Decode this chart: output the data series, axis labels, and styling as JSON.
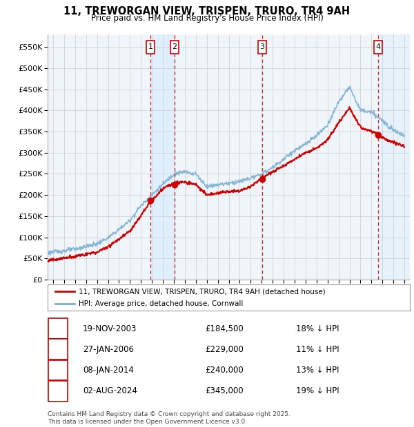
{
  "title_line1": "11, TREWORGAN VIEW, TRISPEN, TRURO, TR4 9AH",
  "title_line2": "Price paid vs. HM Land Registry's House Price Index (HPI)",
  "ytick_values": [
    0,
    50000,
    100000,
    150000,
    200000,
    250000,
    300000,
    350000,
    400000,
    450000,
    500000,
    550000
  ],
  "ylim": [
    0,
    580000
  ],
  "xlim_start": 1994.5,
  "xlim_end": 2027.5,
  "transactions": [
    {
      "num": 1,
      "date": "19-NOV-2003",
      "price": 184500,
      "year": 2003.88,
      "pct": "18%",
      "dir": "↓"
    },
    {
      "num": 2,
      "date": "27-JAN-2006",
      "price": 229000,
      "year": 2006.07,
      "pct": "11%",
      "dir": "↓"
    },
    {
      "num": 3,
      "date": "08-JAN-2014",
      "price": 240000,
      "year": 2014.02,
      "pct": "13%",
      "dir": "↓"
    },
    {
      "num": 4,
      "date": "02-AUG-2024",
      "price": 345000,
      "year": 2024.58,
      "pct": "19%",
      "dir": "↓"
    }
  ],
  "hpi_line_color": "#7bafd4",
  "price_line_color": "#cc0000",
  "vline_color": "#cc0000",
  "shade_color": "#ddeeff",
  "hatch_color": "#bbccdd",
  "background_color": "#ffffff",
  "grid_color": "#cccccc",
  "box_color": "#cc0000",
  "marker_color": "#cc0000",
  "footer_text": "Contains HM Land Registry data © Crown copyright and database right 2025.\nThis data is licensed under the Open Government Licence v3.0.",
  "legend_entries": [
    "11, TREWORGAN VIEW, TRISPEN, TRURO, TR4 9AH (detached house)",
    "HPI: Average price, detached house, Cornwall"
  ],
  "hpi_key_years": [
    1994,
    1995,
    1997,
    1999,
    2000,
    2002,
    2003,
    2004,
    2005,
    2006,
    2007,
    2008,
    2009,
    2010,
    2011,
    2012,
    2013,
    2014,
    2015,
    2016,
    2017,
    2018,
    2019,
    2020,
    2021,
    2022,
    2023,
    2024,
    2025,
    2026,
    2027
  ],
  "hpi_key_vals": [
    62000,
    65000,
    72000,
    85000,
    98000,
    140000,
    175000,
    200000,
    225000,
    250000,
    255000,
    250000,
    220000,
    225000,
    228000,
    232000,
    240000,
    248000,
    265000,
    285000,
    305000,
    320000,
    340000,
    365000,
    420000,
    455000,
    400000,
    395000,
    375000,
    355000,
    340000
  ],
  "price_key_years": [
    1994,
    1995,
    1997,
    1999,
    2000,
    2002,
    2003.88,
    2005,
    2006.07,
    2007,
    2008,
    2009,
    2010,
    2011,
    2012,
    2013,
    2014.02,
    2015,
    2016,
    2017,
    2018,
    2019,
    2020,
    2021,
    2022,
    2023,
    2024.58,
    2025,
    2026,
    2027
  ],
  "price_key_vals": [
    44000,
    47000,
    55000,
    65000,
    78000,
    115000,
    184500,
    215000,
    229000,
    230000,
    225000,
    200000,
    205000,
    208000,
    210000,
    220000,
    240000,
    255000,
    268000,
    285000,
    300000,
    310000,
    330000,
    370000,
    405000,
    360000,
    345000,
    335000,
    325000,
    315000
  ]
}
